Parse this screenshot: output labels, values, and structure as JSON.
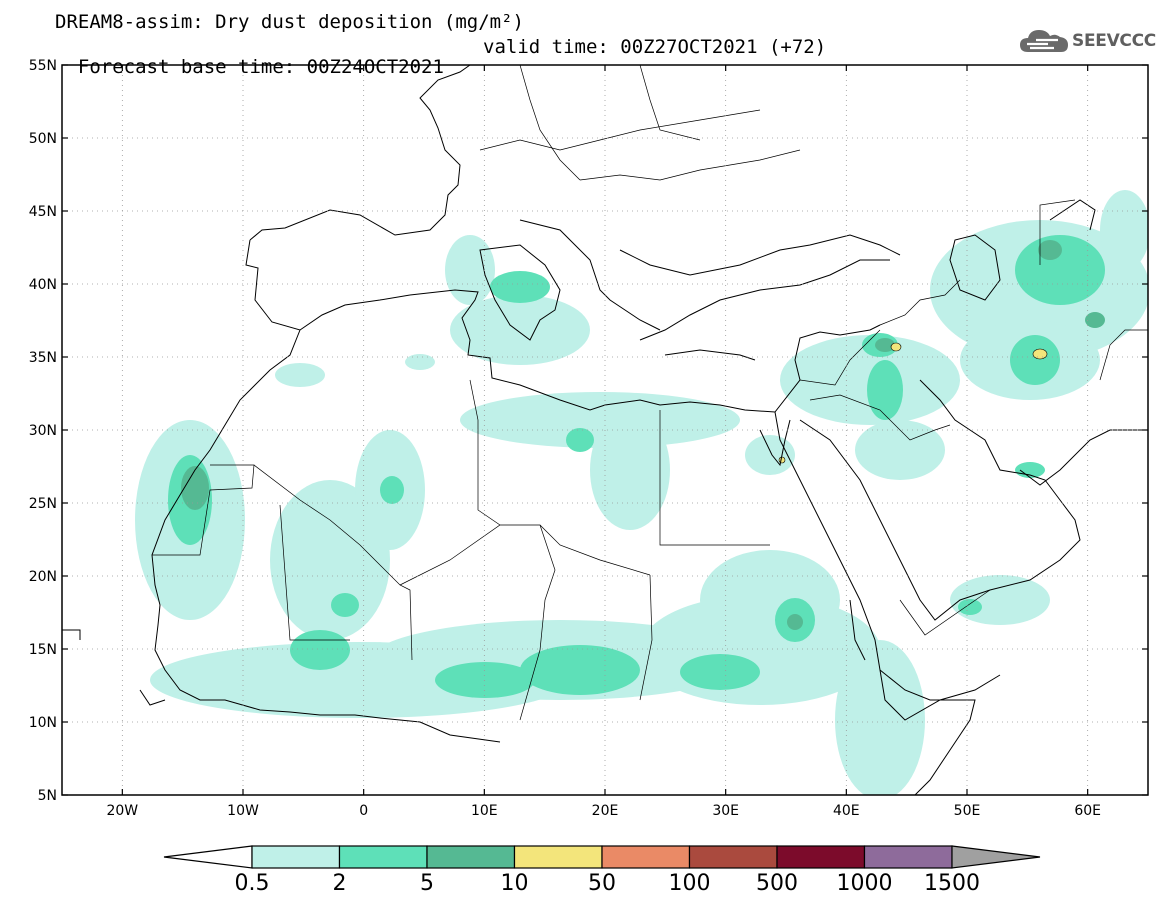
{
  "title": {
    "line1": "DREAM8-assim: Dry dust deposition (mg/m²)",
    "line2_left": "Forecast base time: 00Z24OCT2021",
    "line2_right": "valid time: 00Z27OCT2021 (+72)"
  },
  "logo": {
    "text": "SEEVCCC",
    "icon": "cloud-icon"
  },
  "map": {
    "lon_range": [
      -25,
      65
    ],
    "lat_range": [
      5,
      55
    ],
    "lat_ticks": [
      "5N",
      "10N",
      "15N",
      "20N",
      "25N",
      "30N",
      "35N",
      "40N",
      "45N",
      "50N",
      "55N"
    ],
    "lat_values": [
      5,
      10,
      15,
      20,
      25,
      30,
      35,
      40,
      45,
      50,
      55
    ],
    "lon_ticks": [
      "20W",
      "10W",
      "0",
      "10E",
      "20E",
      "30E",
      "40E",
      "50E",
      "60E"
    ],
    "lon_values": [
      -20,
      -10,
      0,
      10,
      20,
      30,
      40,
      50,
      60
    ],
    "grid": "dotted"
  },
  "colorbar": {
    "labels": [
      "0.5",
      "2",
      "5",
      "10",
      "50",
      "100",
      "500",
      "1000",
      "1500"
    ],
    "colors": [
      "#bff0e8",
      "#5ee0b8",
      "#55b993",
      "#f3e57b",
      "#ea8a66",
      "#aa4a3e",
      "#7c0b2b",
      "#8e6b9b"
    ],
    "under_color": "#ffffff",
    "over_color": "#a0a0a0"
  }
}
